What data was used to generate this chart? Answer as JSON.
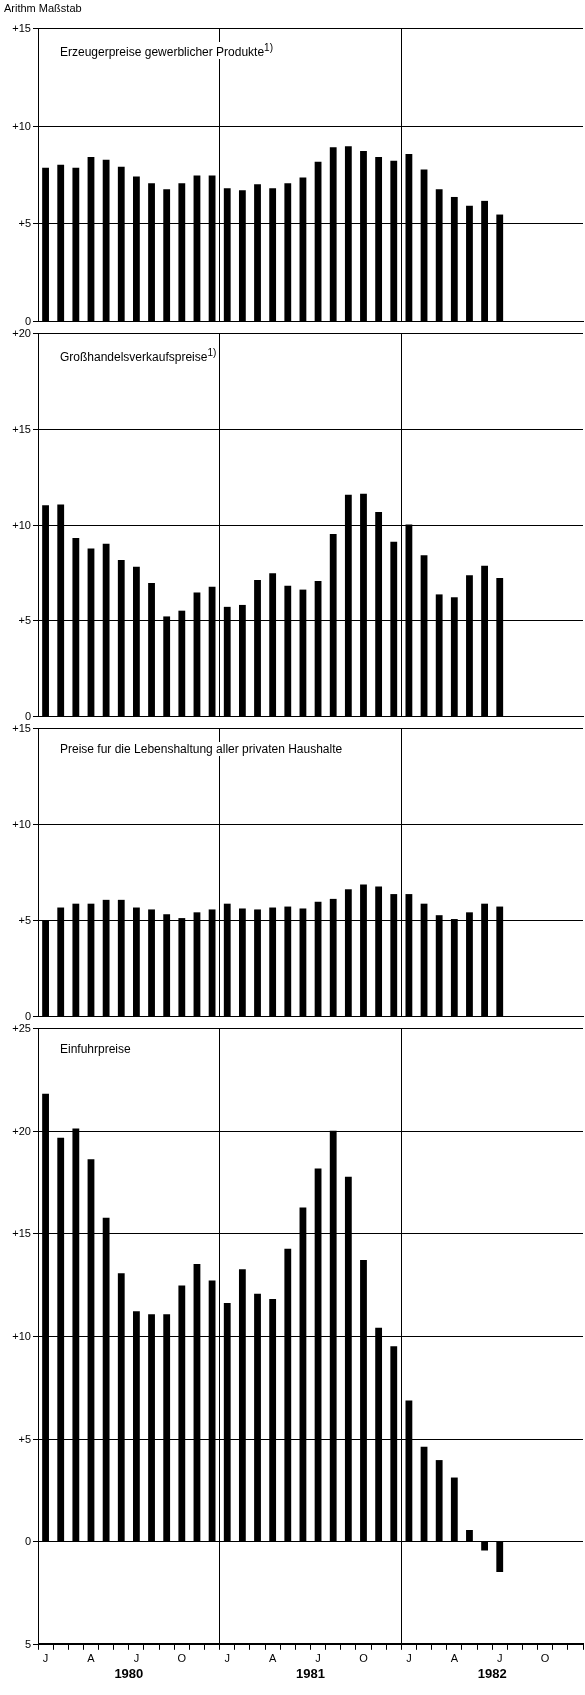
{
  "chart_data": [
    {
      "type": "bar",
      "title": "Erzeugerpreise gewerblicher Produkte$^{1)}$",
      "ylabel": "Arithm Maßstab",
      "categories": [
        null,
        null,
        null,
        null,
        null,
        null,
        null,
        null,
        null,
        null,
        null,
        null,
        null,
        null,
        null,
        null,
        null,
        null,
        null,
        null,
        null,
        null,
        null,
        null,
        null,
        null,
        null,
        null,
        null,
        null,
        null,
        null,
        null,
        null,
        null,
        null
      ],
      "values": [
        7.85,
        8.0,
        7.85,
        8.4,
        8.25,
        7.9,
        7.4,
        7.05,
        6.75,
        7.05,
        7.45,
        7.45,
        6.8,
        6.7,
        7.0,
        6.8,
        7.05,
        7.35,
        8.15,
        8.9,
        8.95,
        8.7,
        8.4,
        8.2,
        8.55,
        7.75,
        6.75,
        6.35,
        5.9,
        6.15,
        5.45,
        null,
        null,
        null,
        null,
        null
      ],
      "color": "#000000",
      "ylim": [
        0,
        15
      ],
      "yticks": [
        {
          "value": 0,
          "label": "0"
        },
        {
          "value": 5,
          "label": "+5"
        },
        {
          "value": 10,
          "label": "+10"
        },
        {
          "value": 15,
          "label": "+15"
        }
      ],
      "grid": true,
      "tick_labels": "y"
    },
    {
      "type": "bar",
      "title": "Großhandelsverkaufspreise$^{1)}$",
      "categories": [
        null,
        null,
        null,
        null,
        null,
        null,
        null,
        null,
        null,
        null,
        null,
        null,
        null,
        null,
        null,
        null,
        null,
        null,
        null,
        null,
        null,
        null,
        null,
        null,
        null,
        null,
        null,
        null,
        null,
        null,
        null,
        null,
        null,
        null,
        null,
        null
      ],
      "values": [
        11.0,
        11.05,
        9.3,
        8.75,
        9.0,
        8.15,
        7.8,
        6.95,
        5.2,
        5.5,
        6.45,
        6.75,
        5.7,
        5.8,
        7.1,
        7.45,
        6.8,
        6.6,
        7.05,
        9.5,
        11.55,
        11.6,
        10.65,
        9.1,
        10.0,
        8.4,
        6.35,
        6.2,
        7.35,
        7.85,
        7.2,
        null,
        null,
        null,
        null,
        null
      ],
      "color": "#000000",
      "ylim": [
        0,
        20
      ],
      "yticks": [
        {
          "value": 0,
          "label": "0"
        },
        {
          "value": 5,
          "label": "+5"
        },
        {
          "value": 10,
          "label": "+10"
        },
        {
          "value": 15,
          "label": "+15"
        },
        {
          "value": 20,
          "label": "+20"
        }
      ],
      "grid": true,
      "tick_labels": "y"
    },
    {
      "type": "bar",
      "title": "Preise fur die Lebenshaltung aller privaten Haushalte",
      "categories": [
        null,
        null,
        null,
        null,
        null,
        null,
        null,
        null,
        null,
        null,
        null,
        null,
        null,
        null,
        null,
        null,
        null,
        null,
        null,
        null,
        null,
        null,
        null,
        null,
        null,
        null,
        null,
        null,
        null,
        null,
        null,
        null,
        null,
        null,
        null,
        null
      ],
      "values": [
        5.0,
        5.65,
        5.85,
        5.85,
        6.05,
        6.05,
        5.65,
        5.55,
        5.3,
        5.1,
        5.4,
        5.55,
        5.85,
        5.6,
        5.55,
        5.65,
        5.7,
        5.6,
        5.95,
        6.1,
        6.6,
        6.85,
        6.75,
        6.35,
        6.35,
        5.85,
        5.25,
        5.05,
        5.4,
        5.85,
        5.7,
        null,
        null,
        null,
        null,
        null
      ],
      "color": "#000000",
      "ylim": [
        0,
        15
      ],
      "yticks": [
        {
          "value": 0,
          "label": "0"
        },
        {
          "value": 5,
          "label": "+5"
        },
        {
          "value": 10,
          "label": "+10"
        },
        {
          "value": 15,
          "label": "+15"
        }
      ],
      "grid": true,
      "tick_labels": "y"
    },
    {
      "type": "bar",
      "title": "Einfuhrpreise",
      "categories": [
        "J",
        null,
        null,
        "A",
        null,
        null,
        "J",
        null,
        null,
        "O",
        null,
        null,
        "J",
        null,
        null,
        "A",
        null,
        null,
        "J",
        null,
        null,
        "O",
        null,
        null,
        "J",
        null,
        null,
        "A",
        null,
        null,
        "J",
        null,
        null,
        "O",
        null,
        null
      ],
      "values": [
        21.8,
        19.65,
        20.1,
        18.6,
        15.75,
        13.05,
        11.2,
        11.05,
        11.05,
        12.45,
        13.5,
        12.7,
        11.6,
        13.25,
        12.05,
        11.8,
        14.25,
        16.25,
        18.15,
        20.0,
        17.75,
        13.7,
        10.4,
        9.5,
        6.85,
        4.6,
        3.95,
        3.1,
        0.55,
        -0.45,
        -1.5,
        null,
        null,
        null,
        null,
        null
      ],
      "color": "#000000",
      "ylim": [
        -5,
        25
      ],
      "yticks": [
        {
          "value": -5,
          "label": "5"
        },
        0,
        {
          "value": 5,
          "label": "+5"
        },
        {
          "value": 10,
          "label": "+10"
        },
        {
          "value": 15,
          "label": "+15"
        },
        {
          "value": 20,
          "label": "+20"
        },
        {
          "value": 25,
          "label": "+25"
        }
      ],
      "grid": true,
      "annotations": [
        "1980",
        "1981",
        "1982"
      ]
    }
  ]
}
